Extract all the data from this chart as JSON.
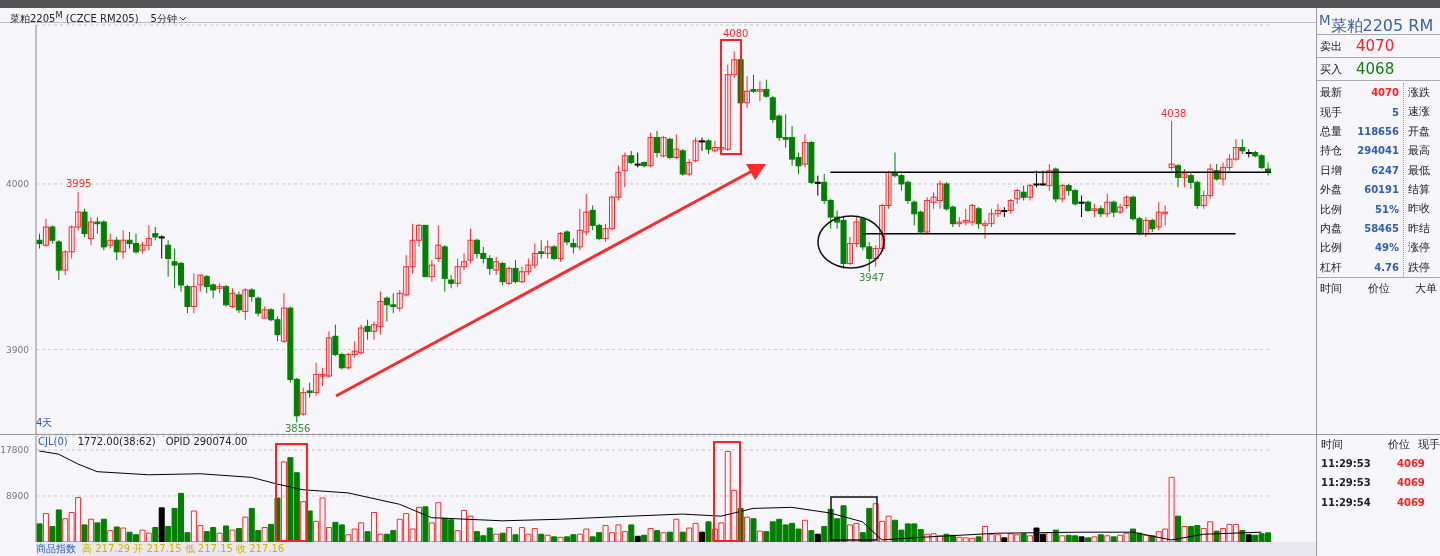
{
  "chart_data": [
    {
      "type": "candlestick",
      "title": "菜粕2205$^{M}$ (CZCE RM205)",
      "subtitle": "5分钟",
      "ylim": [
        3849,
        4096
      ],
      "yticks": [
        3900,
        4000
      ],
      "grid": "y",
      "categories": [
        null,
        null,
        null,
        null,
        null,
        null,
        null,
        null,
        null,
        null,
        null,
        null,
        null,
        null,
        null,
        null,
        null,
        null,
        null,
        null,
        null,
        null,
        null,
        null,
        null,
        null,
        null,
        null,
        null,
        null,
        null,
        null,
        null,
        null,
        null,
        null,
        null,
        null,
        null,
        null,
        null,
        null,
        null,
        null,
        null,
        null,
        null,
        null,
        null,
        null,
        null,
        null,
        null,
        null,
        null,
        null,
        null,
        null,
        null,
        null,
        null,
        null,
        null,
        null,
        null,
        null,
        null,
        null,
        null,
        null,
        null,
        null,
        null,
        null,
        null,
        null,
        null,
        null,
        null,
        null,
        null,
        null,
        null,
        null,
        null,
        null,
        null,
        null,
        null,
        null,
        null,
        null,
        null,
        null,
        null,
        null,
        null,
        null,
        null,
        null,
        null,
        null,
        null,
        null,
        null,
        null,
        null,
        null,
        null,
        null,
        null,
        null,
        null,
        null,
        null,
        null,
        null,
        null,
        null,
        null,
        null,
        null,
        null,
        null,
        null,
        null,
        null,
        null,
        null,
        null,
        null,
        null,
        null,
        null,
        null,
        null,
        null,
        null,
        null,
        null,
        null,
        null,
        null,
        null,
        null,
        null,
        null,
        null,
        null,
        null,
        null,
        null,
        null,
        null,
        null,
        null,
        null,
        null,
        null,
        null,
        null,
        null,
        null,
        null,
        null,
        null,
        null,
        null,
        null,
        null,
        null,
        null,
        null,
        null,
        null,
        null,
        null,
        null,
        null,
        null,
        null,
        null,
        null,
        null,
        null,
        null,
        null,
        null,
        null,
        null,
        null,
        null
      ],
      "ohlc": [
        [
          3966,
          3970,
          3961,
          3964
        ],
        [
          3963,
          3979,
          3962,
          3974
        ],
        [
          3974,
          3975,
          3964,
          3966
        ],
        [
          3965,
          3966,
          3942,
          3948
        ],
        [
          3948,
          3960,
          3945,
          3959
        ],
        [
          3959,
          3975,
          3955,
          3974
        ],
        [
          3974,
          3995,
          3972,
          3983
        ],
        [
          3983,
          3985,
          3968,
          3970
        ],
        [
          3967,
          3980,
          3963,
          3977
        ],
        [
          3977,
          3980,
          3970,
          3976
        ],
        [
          3977,
          3978,
          3960,
          3962
        ],
        [
          3963,
          3970,
          3961,
          3966
        ],
        [
          3966,
          3968,
          3954,
          3959
        ],
        [
          3959,
          3972,
          3955,
          3966
        ],
        [
          3966,
          3971,
          3961,
          3964
        ],
        [
          3964,
          3970,
          3958,
          3959
        ],
        [
          3960,
          3965,
          3958,
          3963
        ],
        [
          3963,
          3975,
          3960,
          3967
        ],
        [
          3970,
          3974,
          3966,
          3968
        ],
        [
          3968,
          3969,
          3955,
          3968
        ],
        [
          3963,
          3966,
          3944,
          3955
        ],
        [
          3953,
          3961,
          3937,
          3951
        ],
        [
          3952,
          3953,
          3935,
          3939
        ],
        [
          3938,
          3939,
          3922,
          3926
        ],
        [
          3926,
          3946,
          3922,
          3938
        ],
        [
          3939,
          3945,
          3935,
          3945
        ],
        [
          3944,
          3945,
          3934,
          3938
        ],
        [
          3939,
          3940,
          3931,
          3936
        ],
        [
          3937,
          3940,
          3934,
          3938
        ],
        [
          3938,
          3939,
          3926,
          3927
        ],
        [
          3926,
          3937,
          3925,
          3934
        ],
        [
          3933,
          3935,
          3922,
          3924
        ],
        [
          3923,
          3937,
          3918,
          3936
        ],
        [
          3936,
          3937,
          3929,
          3932
        ],
        [
          3931,
          3932,
          3920,
          3922
        ],
        [
          3919,
          3926,
          3919,
          3924
        ],
        [
          3924,
          3925,
          3917,
          3918
        ],
        [
          3918,
          3920,
          3905,
          3909
        ],
        [
          3905,
          3934,
          3904,
          3925
        ],
        [
          3925,
          3926,
          3880,
          3882
        ],
        [
          3882,
          3883,
          3856,
          3860
        ],
        [
          3861,
          3877,
          3860,
          3874
        ],
        [
          3875,
          3880,
          3871,
          3874
        ],
        [
          3874,
          3892,
          3872,
          3885
        ],
        [
          3884,
          3889,
          3878,
          3885
        ],
        [
          3884,
          3911,
          3883,
          3907
        ],
        [
          3908,
          3915,
          3896,
          3897
        ],
        [
          3897,
          3898,
          3888,
          3889
        ],
        [
          3889,
          3898,
          3888,
          3897
        ],
        [
          3897,
          3905,
          3895,
          3899
        ],
        [
          3898,
          3915,
          3897,
          3913
        ],
        [
          3914,
          3918,
          3906,
          3911
        ],
        [
          3911,
          3917,
          3906,
          3915
        ],
        [
          3914,
          3935,
          3909,
          3929
        ],
        [
          3931,
          3932,
          3917,
          3927
        ],
        [
          3927,
          3934,
          3922,
          3926
        ],
        [
          3925,
          3936,
          3923,
          3934
        ],
        [
          3933,
          3957,
          3932,
          3950
        ],
        [
          3950,
          3976,
          3946,
          3966
        ],
        [
          3966,
          3976,
          3962,
          3975
        ],
        [
          3975,
          3975,
          3944,
          3944
        ],
        [
          3944,
          3954,
          3941,
          3951
        ],
        [
          3955,
          3975,
          3953,
          3963
        ],
        [
          3962,
          3963,
          3935,
          3943
        ],
        [
          3942,
          3945,
          3937,
          3940
        ],
        [
          3940,
          3955,
          3938,
          3950
        ],
        [
          3950,
          3958,
          3948,
          3953
        ],
        [
          3954,
          3973,
          3952,
          3966
        ],
        [
          3966,
          3967,
          3955,
          3958
        ],
        [
          3958,
          3962,
          3952,
          3955
        ],
        [
          3955,
          3957,
          3945,
          3949
        ],
        [
          3948,
          3956,
          3945,
          3953
        ],
        [
          3952,
          3953,
          3939,
          3941
        ],
        [
          3940,
          3950,
          3939,
          3949
        ],
        [
          3949,
          3954,
          3940,
          3941
        ],
        [
          3941,
          3950,
          3940,
          3947
        ],
        [
          3947,
          3955,
          3945,
          3951
        ],
        [
          3951,
          3964,
          3949,
          3958
        ],
        [
          3959,
          3966,
          3955,
          3958
        ],
        [
          3958,
          3966,
          3955,
          3962
        ],
        [
          3962,
          3963,
          3954,
          3955
        ],
        [
          3955,
          3971,
          3953,
          3970
        ],
        [
          3971,
          3972,
          3963,
          3965
        ],
        [
          3964,
          3967,
          3958,
          3962
        ],
        [
          3962,
          3985,
          3960,
          3972
        ],
        [
          3971,
          3994,
          3969,
          3983
        ],
        [
          3984,
          3987,
          3972,
          3975
        ],
        [
          3975,
          3976,
          3966,
          3967
        ],
        [
          3967,
          3976,
          3965,
          3973
        ],
        [
          3973,
          3993,
          3972,
          3992
        ],
        [
          3992,
          4011,
          3990,
          4007
        ],
        [
          4008,
          4019,
          3998,
          4017
        ],
        [
          4017,
          4020,
          4012,
          4013
        ],
        [
          4012,
          4019,
          4010,
          4012
        ],
        [
          4013,
          4013,
          4010,
          4011
        ],
        [
          4011,
          4031,
          4010,
          4028
        ],
        [
          4028,
          4032,
          4016,
          4019
        ],
        [
          4017,
          4029,
          4016,
          4028
        ],
        [
          4027,
          4028,
          4015,
          4016
        ],
        [
          4016,
          4030,
          4015,
          4021
        ],
        [
          4020,
          4021,
          4005,
          4006
        ],
        [
          4006,
          4015,
          4005,
          4013
        ],
        [
          4014,
          4028,
          4013,
          4026
        ],
        [
          4026,
          4028,
          4020,
          4026
        ],
        [
          4026,
          4027,
          4018,
          4021
        ],
        [
          4020,
          4026,
          4019,
          4022
        ],
        [
          4021,
          4023,
          4020,
          4022
        ],
        [
          4021,
          4072,
          4020,
          4066
        ],
        [
          4066,
          4080,
          4064,
          4075
        ],
        [
          4075,
          4075,
          4048,
          4049
        ],
        [
          4049,
          4065,
          4046,
          4056
        ],
        [
          4057,
          4066,
          4055,
          4056
        ],
        [
          4056,
          4062,
          4050,
          4057
        ],
        [
          4057,
          4063,
          4052,
          4053
        ],
        [
          4052,
          4053,
          4037,
          4039
        ],
        [
          4041,
          4042,
          4026,
          4028
        ],
        [
          4028,
          4042,
          4022,
          4027
        ],
        [
          4028,
          4035,
          4011,
          4015
        ],
        [
          4016,
          4019,
          4006,
          4011
        ],
        [
          4012,
          4030,
          4010,
          4025
        ],
        [
          4025,
          4026,
          4000,
          4001
        ],
        [
          4001,
          4005,
          3993,
          4001
        ],
        [
          4001,
          4006,
          3988,
          3990
        ],
        [
          3990,
          3991,
          3973,
          3980
        ],
        [
          3980,
          3984,
          3973,
          3977
        ],
        [
          3978,
          3980,
          3949,
          3952
        ],
        [
          3952,
          3968,
          3951,
          3964
        ],
        [
          3964,
          3980,
          3962,
          3977
        ],
        [
          3979,
          3980,
          3960,
          3962
        ],
        [
          3962,
          3965,
          3947,
          3955
        ],
        [
          3955,
          3963,
          3950,
          3961
        ],
        [
          3961,
          3988,
          3959,
          3987
        ],
        [
          3987,
          4008,
          3985,
          4007
        ],
        [
          4007,
          4019,
          4004,
          4005
        ],
        [
          4005,
          4006,
          3996,
          4000
        ],
        [
          4001,
          4002,
          3988,
          3990
        ],
        [
          3989,
          3990,
          3975,
          3982
        ],
        [
          3983,
          3984,
          3970,
          3971
        ],
        [
          3971,
          3992,
          3970,
          3990
        ],
        [
          3989,
          3995,
          3985,
          3992
        ],
        [
          3990,
          4002,
          3985,
          4000
        ],
        [
          4000,
          4001,
          3984,
          3985
        ],
        [
          3986,
          3987,
          3974,
          3976
        ],
        [
          3976,
          3980,
          3974,
          3977
        ],
        [
          3977,
          3985,
          3975,
          3978
        ],
        [
          3977,
          3988,
          3975,
          3987
        ],
        [
          3985,
          3986,
          3973,
          3976
        ],
        [
          3975,
          3978,
          3967,
          3976
        ],
        [
          3976,
          3985,
          3974,
          3982
        ],
        [
          3982,
          3988,
          3980,
          3984
        ],
        [
          3984,
          3986,
          3980,
          3984
        ],
        [
          3984,
          3991,
          3982,
          3990
        ],
        [
          3991,
          3997,
          3988,
          3996
        ],
        [
          3995,
          3999,
          3990,
          3992
        ],
        [
          3992,
          4000,
          3990,
          3999
        ],
        [
          4000,
          4008,
          3998,
          4000
        ],
        [
          4000,
          4008,
          3999,
          4000
        ],
        [
          3999,
          4012,
          3996,
          4008
        ],
        [
          4009,
          4010,
          3989,
          3991
        ],
        [
          3991,
          4000,
          3989,
          3999
        ],
        [
          3999,
          4000,
          3993,
          3996
        ],
        [
          3996,
          3997,
          3987,
          3988
        ],
        [
          3989,
          3993,
          3980,
          3989
        ],
        [
          3989,
          3990,
          3983,
          3984
        ],
        [
          3984,
          3988,
          3980,
          3985
        ],
        [
          3985,
          3987,
          3980,
          3982
        ],
        [
          3982,
          3994,
          3980,
          3989
        ],
        [
          3989,
          3990,
          3980,
          3983
        ],
        [
          3983,
          3988,
          3982,
          3986
        ],
        [
          3987,
          3993,
          3985,
          3992
        ],
        [
          3992,
          3993,
          3978,
          3979
        ],
        [
          3979,
          3980,
          3969,
          3970
        ],
        [
          3970,
          3980,
          3968,
          3978
        ],
        [
          3978,
          3979,
          3971,
          3973
        ],
        [
          3974,
          3989,
          3972,
          3983
        ],
        [
          3982,
          3987,
          3975,
          3983
        ],
        [
          4010,
          4038,
          4008,
          4012
        ],
        [
          4011,
          4012,
          3998,
          4004
        ],
        [
          4004,
          4009,
          3998,
          4006
        ],
        [
          4005,
          4007,
          3997,
          4001
        ],
        [
          4001,
          4002,
          3985,
          3987
        ],
        [
          3987,
          3996,
          3985,
          3993
        ],
        [
          3993,
          4012,
          3991,
          4009
        ],
        [
          4008,
          4012,
          4002,
          4003
        ],
        [
          4003,
          4013,
          3999,
          4010
        ],
        [
          4010,
          4018,
          4008,
          4015
        ],
        [
          4015,
          4027,
          4014,
          4022
        ],
        [
          4022,
          4027,
          4018,
          4020
        ],
        [
          4019,
          4021,
          4016,
          4019
        ],
        [
          4019,
          4020,
          4016,
          4017
        ],
        [
          4017,
          4018,
          4009,
          4010
        ],
        [
          4009,
          4013,
          4005,
          4007
        ]
      ],
      "annotations": [
        "3995",
        "4080",
        "3856",
        "3947",
        "4038",
        "4天"
      ],
      "ref_lines": [
        {
          "axis": "y",
          "value": 4007,
          "color": "#000000"
        },
        {
          "axis": "y",
          "value": 3970,
          "color": "#000000"
        }
      ]
    },
    {
      "type": "bar",
      "title": "CJL(0)",
      "subtitle": "1772.00(38:62)",
      "ylim": [
        0,
        20500
      ],
      "yticks": [
        8900,
        17800
      ],
      "grid": "y",
      "categories": [
        null,
        null,
        null,
        null,
        null,
        null,
        null,
        null,
        null,
        null,
        null,
        null,
        null,
        null,
        null,
        null,
        null,
        null,
        null,
        null,
        null,
        null,
        null,
        null,
        null,
        null,
        null,
        null,
        null,
        null,
        null,
        null,
        null,
        null,
        null,
        null,
        null,
        null,
        null,
        null,
        null,
        null,
        null,
        null,
        null,
        null,
        null,
        null,
        null,
        null,
        null,
        null,
        null,
        null,
        null,
        null,
        null,
        null,
        null,
        null,
        null,
        null,
        null,
        null,
        null,
        null,
        null,
        null,
        null,
        null,
        null,
        null,
        null,
        null,
        null,
        null,
        null,
        null,
        null,
        null,
        null,
        null,
        null,
        null,
        null,
        null,
        null,
        null,
        null,
        null,
        null,
        null,
        null,
        null,
        null,
        null,
        null,
        null,
        null,
        null,
        null,
        null,
        null,
        null,
        null,
        null,
        null,
        null,
        null,
        null,
        null,
        null,
        null,
        null,
        null,
        null,
        null,
        null,
        null,
        null,
        null,
        null,
        null,
        null,
        null,
        null,
        null,
        null,
        null,
        null,
        null,
        null,
        null,
        null,
        null,
        null,
        null,
        null,
        null,
        null,
        null,
        null,
        null,
        null,
        null,
        null,
        null,
        null,
        null,
        null,
        null,
        null,
        null,
        null,
        null,
        null,
        null,
        null,
        null,
        null,
        null,
        null,
        null,
        null,
        null,
        null,
        null,
        null,
        null,
        null,
        null,
        null,
        null,
        null,
        null,
        null,
        null,
        null,
        null,
        null,
        null,
        null,
        null,
        null,
        null,
        null,
        null,
        null,
        null,
        null,
        null,
        null
      ],
      "series": [
        {
          "type": "bar",
          "colors": [
            "#007f00",
            "#ff2a2a",
            "#007f00",
            "#007f00",
            "#ff2a2a",
            "#ff2a2a",
            "#ff2a2a",
            "#007f00",
            "#ff2a2a",
            "#007f00",
            "#007f00",
            "#ff2a2a",
            "#007f00",
            "#ff2a2a",
            "#007f00",
            "#007f00",
            "#ff2a2a",
            "#ff2a2a",
            "#007f00",
            "#000000",
            "#007f00",
            "#007f00",
            "#007f00",
            "#007f00",
            "#ff2a2a",
            "#ff2a2a",
            "#007f00",
            "#007f00",
            "#ff2a2a",
            "#007f00",
            "#ff2a2a",
            "#007f00",
            "#ff2a2a",
            "#007f00",
            "#007f00",
            "#ff2a2a",
            "#007f00",
            "#007f00",
            "#ff2a2a",
            "#007f00",
            "#007f00",
            "#ff2a2a",
            "#007f00",
            "#ff2a2a",
            "#ff2a2a",
            "#ff2a2a",
            "#007f00",
            "#007f00",
            "#ff2a2a",
            "#ff2a2a",
            "#ff2a2a",
            "#007f00",
            "#ff2a2a",
            "#ff2a2a",
            "#007f00",
            "#007f00",
            "#ff2a2a",
            "#ff2a2a",
            "#ff2a2a",
            "#ff2a2a",
            "#007f00",
            "#ff2a2a",
            "#ff2a2a",
            "#007f00",
            "#007f00",
            "#ff2a2a",
            "#ff2a2a",
            "#ff2a2a",
            "#007f00",
            "#007f00",
            "#007f00",
            "#ff2a2a",
            "#007f00",
            "#ff2a2a",
            "#007f00",
            "#ff2a2a",
            "#ff2a2a",
            "#ff2a2a",
            "#007f00",
            "#ff2a2a",
            "#007f00",
            "#ff2a2a",
            "#007f00",
            "#007f00",
            "#ff2a2a",
            "#ff2a2a",
            "#007f00",
            "#007f00",
            "#ff2a2a",
            "#ff2a2a",
            "#ff2a2a",
            "#ff2a2a",
            "#007f00",
            "#000000",
            "#007f00",
            "#ff2a2a",
            "#007f00",
            "#ff2a2a",
            "#007f00",
            "#ff2a2a",
            "#007f00",
            "#ff2a2a",
            "#ff2a2a",
            "#000000",
            "#007f00",
            "#ff2a2a",
            "#ff2a2a",
            "#ff2a2a",
            "#ff2a2a",
            "#007f00",
            "#ff2a2a",
            "#007f00",
            "#ff2a2a",
            "#007f00",
            "#007f00",
            "#007f00",
            "#007f00",
            "#007f00",
            "#007f00",
            "#ff2a2a",
            "#007f00",
            "#000000",
            "#007f00",
            "#007f00",
            "#007f00",
            "#007f00",
            "#ff2a2a",
            "#ff2a2a",
            "#007f00",
            "#007f00",
            "#ff2a2a",
            "#ff2a2a",
            "#ff2a2a",
            "#007f00",
            "#007f00",
            "#007f00",
            "#007f00",
            "#007f00",
            "#ff2a2a",
            "#ff2a2a",
            "#ff2a2a",
            "#007f00",
            "#007f00",
            "#ff2a2a",
            "#ff2a2a",
            "#ff2a2a",
            "#007f00",
            "#ff2a2a",
            "#ff2a2a",
            "#ff2a2a",
            "#000000",
            "#ff2a2a",
            "#ff2a2a",
            "#007f00",
            "#ff2a2a",
            "#000000",
            "#000000",
            "#ff2a2a",
            "#007f00",
            "#ff2a2a",
            "#007f00",
            "#007f00",
            "#000000",
            "#007f00",
            "#ff2a2a",
            "#007f00",
            "#ff2a2a",
            "#007f00",
            "#ff2a2a",
            "#ff2a2a",
            "#007f00",
            "#007f00",
            "#ff2a2a",
            "#007f00",
            "#ff2a2a",
            "#ff2a2a",
            "#ff2a2a",
            "#007f00",
            "#ff2a2a",
            "#007f00",
            "#007f00",
            "#ff2a2a",
            "#ff2a2a",
            "#007f00",
            "#ff2a2a",
            "#ff2a2a",
            "#ff2a2a",
            "#007f00",
            "#000000",
            "#007f00",
            "#007f00",
            "#007f00"
          ],
          "values": [
            3500,
            5500,
            3000,
            6200,
            4500,
            5700,
            8600,
            3300,
            4400,
            3700,
            4400,
            2200,
            2900,
            2700,
            1900,
            1400,
            2300,
            1700,
            2800,
            6600,
            3000,
            6500,
            9400,
            1800,
            6000,
            3200,
            2000,
            2800,
            1700,
            3100,
            2300,
            2600,
            4800,
            6500,
            2200,
            2800,
            3400,
            8500,
            15500,
            16300,
            13400,
            7800,
            6000,
            4000,
            8500,
            2800,
            3800,
            3300,
            1400,
            2500,
            3700,
            2000,
            5700,
            1500,
            1500,
            2200,
            4400,
            5500,
            2500,
            6700,
            6800,
            3700,
            7600,
            4600,
            4300,
            2200,
            6100,
            5000,
            2000,
            1200,
            2700,
            1500,
            1700,
            2800,
            1400,
            2800,
            1500,
            2600,
            1500,
            1300,
            1000,
            900,
            1000,
            1400,
            1500,
            2500,
            1000,
            1800,
            3200,
            1800,
            3300,
            2000,
            3300,
            1100,
            1300,
            2600,
            2200,
            1800,
            1900,
            4400,
            1900,
            2700,
            3600,
            1900,
            3900,
            2500,
            3700,
            17500,
            10000,
            6500,
            4800,
            4500,
            2100,
            2000,
            3900,
            4400,
            3300,
            3600,
            2500,
            4200,
            2200,
            1500,
            3000,
            6300,
            4500,
            7000,
            3300,
            3600,
            1800,
            6500,
            7400,
            4000,
            5000,
            4200,
            2300,
            3500,
            3500,
            2400,
            1500,
            1600,
            1200,
            1500,
            1300,
            900,
            800,
            700,
            1000,
            3000,
            1500,
            1400,
            800,
            1600,
            1400,
            1600,
            1200,
            2700,
            1500,
            1800,
            2300,
            1200,
            1300,
            1200,
            1000,
            800,
            1000,
            1400,
            1200,
            1000,
            1300,
            1700,
            2500,
            1700,
            1300,
            1200,
            2000,
            2500,
            12500,
            5000,
            3000,
            3000,
            3200,
            2600,
            3900,
            2100,
            2600,
            3400,
            3400,
            2200,
            1400,
            1300,
            1600,
            1772
          ]
        },
        {
          "type": "line",
          "color": "#000000",
          "values": [
            17600,
            null,
            null,
            17000,
            null,
            null,
            15100,
            null,
            null,
            13600,
            null,
            null,
            null,
            null,
            null,
            null,
            null,
            13000,
            null,
            null,
            null,
            null,
            null,
            null,
            null,
            13200,
            null,
            null,
            null,
            null,
            null,
            null,
            null,
            12500,
            null,
            null,
            null,
            11200,
            null,
            null,
            null,
            10100,
            null,
            null,
            null,
            null,
            null,
            null,
            9500,
            null,
            null,
            null,
            null,
            null,
            null,
            null,
            7300,
            null,
            null,
            null,
            null,
            4700,
            null,
            null,
            null,
            null,
            null,
            null,
            null,
            null,
            null,
            null,
            4100,
            null,
            null,
            null,
            null,
            null,
            null,
            null,
            null,
            4400,
            null,
            null,
            null,
            null,
            null,
            null,
            null,
            null,
            4900,
            null,
            null,
            null,
            null,
            null,
            null,
            null,
            null,
            null,
            5400,
            null,
            null,
            null,
            null,
            null,
            5000,
            null,
            null,
            null,
            null,
            6500,
            null,
            null,
            null,
            null,
            null,
            6700,
            null,
            null,
            null,
            null,
            null,
            5600,
            null,
            null,
            null,
            null,
            3900,
            null,
            null,
            400,
            null,
            null,
            null,
            null,
            null,
            900,
            null,
            null,
            null,
            null,
            null,
            null,
            null,
            null,
            null,
            null,
            null,
            1700,
            null,
            null,
            null,
            null,
            null,
            null,
            null,
            null,
            null,
            null,
            null,
            null,
            1900,
            null,
            null,
            null,
            null,
            null,
            null,
            null,
            1900,
            null,
            null,
            null,
            null,
            null,
            400,
            null,
            null,
            null,
            null,
            1500,
            null,
            null,
            null,
            null,
            null,
            null,
            null,
            null,
            1900,
            null
          ]
        }
      ],
      "annotations": [
        "OPID 290074.00",
        "商品指数 高 217.29 开 217.15 低 217.15 收 217.16"
      ]
    },
    {
      "type": "other",
      "title": "$^{M}$菜粕2205 RM",
      "annotations": [
        "卖出 4070",
        "买入 4068",
        "最新 4070",
        "现手 5",
        "总量 118656",
        "持仓 294041",
        "日增 6247",
        "外盘 60191",
        "比例 51%",
        "内盘 58465",
        "比例 49%",
        "杠杆 4.76",
        "涨跌",
        "速涨",
        "开盘",
        "最高",
        "最低",
        "结算",
        "昨收",
        "昨结",
        "涨停",
        "跌停",
        "时间 价位 大单",
        "时间 价位 现手",
        "11:29:53 4069",
        "11:29:53 4069",
        "11:29:54 4069"
      ]
    }
  ]
}
